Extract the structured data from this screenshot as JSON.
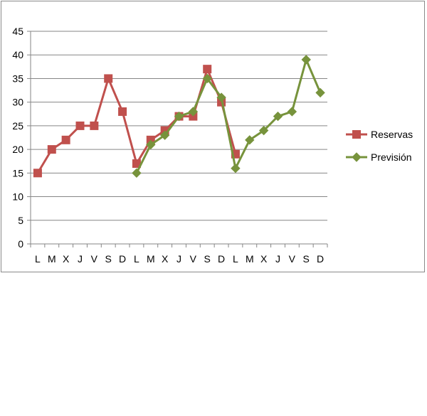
{
  "chart_data": {
    "type": "line",
    "categories": [
      "L",
      "M",
      "X",
      "J",
      "V",
      "S",
      "D",
      "L",
      "M",
      "X",
      "J",
      "V",
      "S",
      "D",
      "L",
      "M",
      "X",
      "J",
      "V",
      "S",
      "D"
    ],
    "ylim": [
      0,
      45
    ],
    "yticks": [
      0,
      5,
      10,
      15,
      20,
      25,
      30,
      35,
      40,
      45
    ],
    "grid": "horizontal",
    "legend_position": "right",
    "title": "",
    "xlabel": "",
    "ylabel": "",
    "series": [
      {
        "name": "Reservas",
        "color": "#c0504d",
        "marker": "square",
        "values": [
          15,
          20,
          22,
          25,
          25,
          35,
          28,
          17,
          22,
          24,
          27,
          27,
          37,
          30,
          19,
          null,
          null,
          null,
          null,
          null,
          null
        ]
      },
      {
        "name": "Previsión",
        "color": "#77933c",
        "marker": "diamond",
        "values": [
          null,
          null,
          null,
          null,
          null,
          null,
          null,
          15,
          21,
          23,
          27,
          28,
          35,
          31,
          16,
          22,
          24,
          27,
          28,
          39,
          32
        ]
      }
    ]
  }
}
